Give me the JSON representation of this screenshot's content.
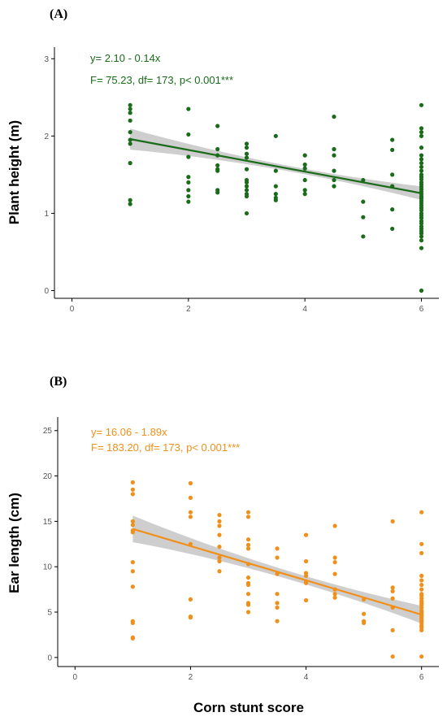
{
  "chart_data": [
    {
      "type": "scatter",
      "panel_label": "(A)",
      "title": "",
      "xlabel": "",
      "ylabel": "Plant height (m)",
      "xlim": [
        -0.3,
        6.3
      ],
      "ylim": [
        -0.1,
        3.15
      ],
      "xticks": [
        0,
        2,
        4,
        6
      ],
      "yticks": [
        0,
        1,
        2,
        3
      ],
      "grid": false,
      "color": "#1a6b1a",
      "annotations": [
        "y= 2.10 - 0.14x",
        "F= 75.23, df= 173, p< 0.001***"
      ],
      "regression": {
        "intercept": 2.1,
        "slope": -0.14,
        "ci_band": true
      },
      "points": {
        "x": [
          1,
          1,
          1,
          1,
          1,
          1,
          1,
          1,
          1,
          1,
          2,
          2,
          2,
          2,
          2,
          2,
          2,
          2,
          2.5,
          2.5,
          2.5,
          2.5,
          2.5,
          2.5,
          2.5,
          2.5,
          3,
          3,
          3,
          3,
          3,
          3,
          3,
          3,
          3,
          3,
          3,
          3,
          3.5,
          3.5,
          3.5,
          3.5,
          3.5,
          3.5,
          4,
          4,
          4,
          4,
          4,
          4,
          4.5,
          4.5,
          4.5,
          4.5,
          4.5,
          4.5,
          5,
          5,
          5,
          5,
          5.5,
          5.5,
          5.5,
          5.5,
          5.5,
          5.5,
          6,
          6,
          6,
          6,
          6,
          6,
          6,
          6,
          6,
          6,
          6,
          6,
          6,
          6,
          6,
          6,
          6,
          6,
          6,
          6,
          6,
          6,
          6,
          6,
          6,
          6,
          6,
          6,
          6,
          6,
          6,
          6,
          6,
          6,
          6,
          6,
          6,
          6,
          6,
          6
        ],
        "y": [
          2.4,
          2.35,
          2.3,
          2.2,
          2.05,
          1.95,
          1.9,
          1.65,
          1.17,
          1.12,
          2.35,
          2.02,
          1.73,
          1.47,
          1.4,
          1.3,
          1.22,
          1.15,
          2.13,
          1.83,
          1.75,
          1.62,
          1.57,
          1.55,
          1.3,
          1.27,
          1.9,
          1.85,
          1.77,
          1.72,
          1.57,
          1.43,
          1.4,
          1.35,
          1.3,
          1.25,
          1.22,
          1.0,
          2.0,
          1.55,
          1.35,
          1.25,
          1.2,
          1.17,
          1.75,
          1.63,
          1.58,
          1.43,
          1.3,
          1.25,
          2.25,
          1.83,
          1.75,
          1.55,
          1.43,
          1.35,
          1.43,
          1.15,
          0.95,
          0.7,
          1.95,
          1.82,
          1.5,
          1.35,
          1.05,
          0.8,
          2.4,
          2.1,
          2.05,
          2.0,
          1.85,
          1.75,
          1.7,
          1.65,
          1.6,
          1.55,
          1.5,
          1.47,
          1.44,
          1.4,
          1.37,
          1.34,
          1.31,
          1.28,
          1.25,
          1.22,
          1.19,
          1.16,
          1.13,
          1.1,
          1.07,
          1.04,
          1.0,
          0.97,
          0.94,
          0.9,
          0.87,
          0.83,
          0.8,
          0.77,
          0.74,
          0.7,
          0.65,
          0.55,
          0.0,
          1.2
        ]
      }
    },
    {
      "type": "scatter",
      "panel_label": "(B)",
      "title": "",
      "xlabel": "Corn stunt score",
      "ylabel": "Ear length (cm)",
      "xlim": [
        -0.3,
        6.3
      ],
      "ylim": [
        -1.0,
        26.5
      ],
      "xticks": [
        0,
        2,
        4,
        6
      ],
      "yticks": [
        0,
        5,
        10,
        15,
        20,
        25
      ],
      "grid": false,
      "color": "#f0901a",
      "annotations": [
        "y= 16.06 - 1.89x",
        "F= 183.20, df= 173, p< 0.001***"
      ],
      "regression": {
        "intercept": 16.06,
        "slope": -1.89,
        "ci_band": true
      },
      "points": {
        "x": [
          1,
          1,
          1,
          1,
          1,
          1,
          1,
          1,
          1,
          1,
          1,
          1,
          1,
          1,
          2,
          2,
          2,
          2,
          2,
          2,
          2,
          2,
          2.5,
          2.5,
          2.5,
          2.5,
          2.5,
          2.5,
          2.5,
          2.5,
          3,
          3,
          3,
          3,
          3,
          3,
          3,
          3,
          3,
          3,
          3,
          3,
          3,
          3.5,
          3.5,
          3.5,
          3.5,
          3.5,
          3.5,
          3.5,
          4,
          4,
          4,
          4,
          4,
          4,
          4,
          4.5,
          4.5,
          4.5,
          4.5,
          4.5,
          4.5,
          4.5,
          5,
          5,
          5,
          5,
          5.5,
          5.5,
          5.5,
          5.5,
          5.5,
          5.5,
          5.5,
          6,
          6,
          6,
          6,
          6,
          6,
          6,
          6,
          6,
          6,
          6,
          6,
          6,
          6,
          6,
          6,
          6,
          6,
          6,
          6,
          6,
          6,
          6,
          6,
          6,
          6
        ],
        "y": [
          19.3,
          18.5,
          18.0,
          15.0,
          14.6,
          14.0,
          13.8,
          10.5,
          9.5,
          7.8,
          4.0,
          3.8,
          2.2,
          2.1,
          19.2,
          17.6,
          16.0,
          15.5,
          12.5,
          6.4,
          4.5,
          4.4,
          15.7,
          15.0,
          14.5,
          13.5,
          12.2,
          11.0,
          10.6,
          9.5,
          16.0,
          15.5,
          13.0,
          12.4,
          12.0,
          10.3,
          8.8,
          8.2,
          8.0,
          7.0,
          6.0,
          5.8,
          5.0,
          12.0,
          11.0,
          9.2,
          7.0,
          6.0,
          5.5,
          4.0,
          13.5,
          10.6,
          9.3,
          9.0,
          8.4,
          8.2,
          6.3,
          14.5,
          11.0,
          10.5,
          9.2,
          7.5,
          7.0,
          6.6,
          6.4,
          4.8,
          4.0,
          3.8,
          15.0,
          7.7,
          7.3,
          6.5,
          5.5,
          3.0,
          0.1,
          16.0,
          12.5,
          11.5,
          9.0,
          8.5,
          8.0,
          7.5,
          7.0,
          6.8,
          6.5,
          6.2,
          6.0,
          5.8,
          5.5,
          5.2,
          5.0,
          4.8,
          4.6,
          4.4,
          4.2,
          4.0,
          3.8,
          3.5,
          3.3,
          3.0,
          0.1
        ]
      }
    }
  ]
}
